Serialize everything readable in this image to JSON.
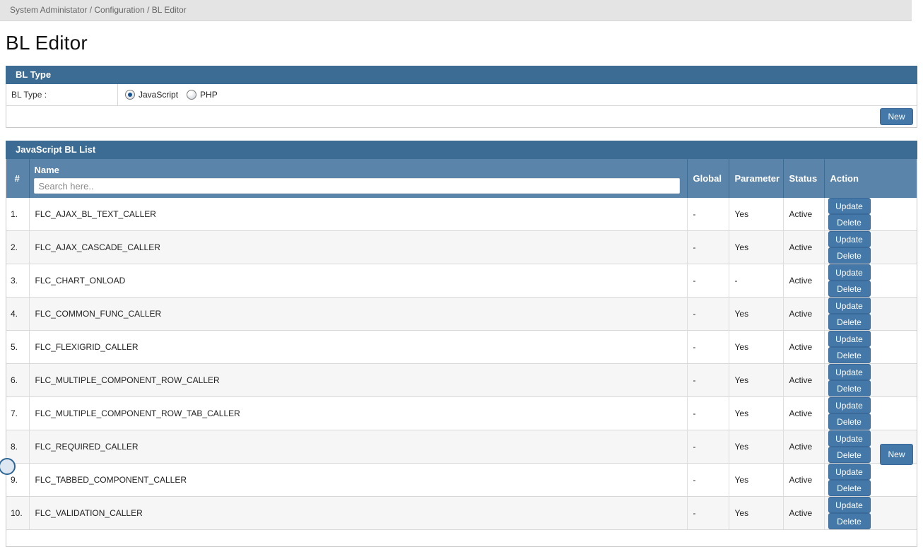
{
  "breadcrumb": "System Administator / Configuration / BL Editor",
  "page_title": "BL Editor",
  "bl_type_panel": {
    "title": "BL Type",
    "label": "BL Type :",
    "options": [
      {
        "label": "JavaScript",
        "selected": true
      },
      {
        "label": "PHP",
        "selected": false
      }
    ],
    "new_button": "New"
  },
  "list_panel": {
    "title": "JavaScript BL List",
    "columns": {
      "index": "#",
      "name": "Name",
      "global": "Global",
      "parameter": "Parameter",
      "status": "Status",
      "action": "Action"
    },
    "search_placeholder": "Search here..",
    "update_label": "Update",
    "delete_label": "Delete",
    "new_button": "New",
    "rows": [
      {
        "index": "1.",
        "name": "FLC_AJAX_BL_TEXT_CALLER",
        "global": "-",
        "parameter": "Yes",
        "status": "Active"
      },
      {
        "index": "2.",
        "name": "FLC_AJAX_CASCADE_CALLER",
        "global": "-",
        "parameter": "Yes",
        "status": "Active"
      },
      {
        "index": "3.",
        "name": "FLC_CHART_ONLOAD",
        "global": "-",
        "parameter": "-",
        "status": "Active"
      },
      {
        "index": "4.",
        "name": "FLC_COMMON_FUNC_CALLER",
        "global": "-",
        "parameter": "Yes",
        "status": "Active"
      },
      {
        "index": "5.",
        "name": "FLC_FLEXIGRID_CALLER",
        "global": "-",
        "parameter": "Yes",
        "status": "Active"
      },
      {
        "index": "6.",
        "name": "FLC_MULTIPLE_COMPONENT_ROW_CALLER",
        "global": "-",
        "parameter": "Yes",
        "status": "Active"
      },
      {
        "index": "7.",
        "name": "FLC_MULTIPLE_COMPONENT_ROW_TAB_CALLER",
        "global": "-",
        "parameter": "Yes",
        "status": "Active"
      },
      {
        "index": "8.",
        "name": "FLC_REQUIRED_CALLER",
        "global": "-",
        "parameter": "Yes",
        "status": "Active"
      },
      {
        "index": "9.",
        "name": "FLC_TABBED_COMPONENT_CALLER",
        "global": "-",
        "parameter": "Yes",
        "status": "Active"
      },
      {
        "index": "10.",
        "name": "FLC_VALIDATION_CALLER",
        "global": "-",
        "parameter": "Yes",
        "status": "Active"
      }
    ]
  },
  "colors": {
    "panel_header": "#3c6b93",
    "table_header": "#5b84aa",
    "button": "#4478a8",
    "button_border": "#3a6a99",
    "breadcrumb_bar": "#e4e4e4"
  }
}
